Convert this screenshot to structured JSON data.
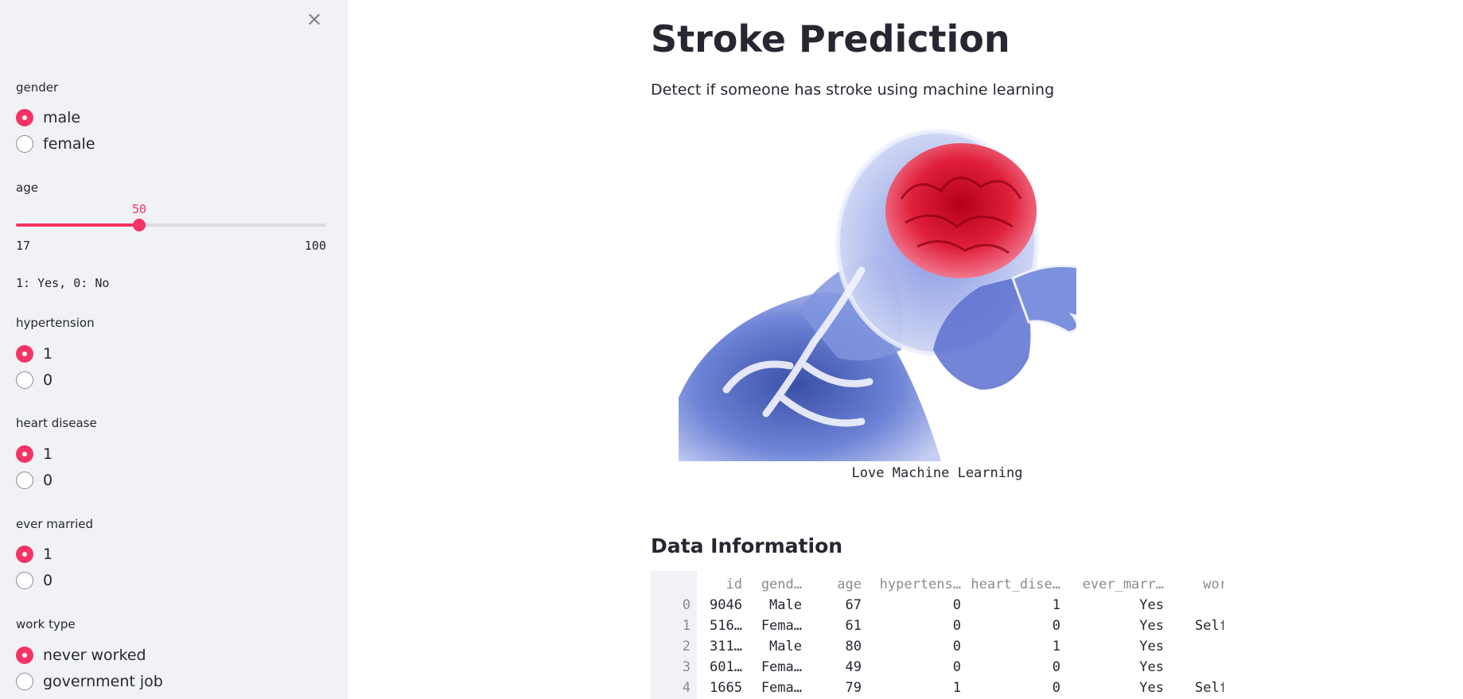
{
  "sidebar": {
    "close_icon": "close-icon",
    "gender": {
      "label": "gender",
      "options": [
        {
          "label": "male",
          "selected": true
        },
        {
          "label": "female",
          "selected": false
        }
      ]
    },
    "age": {
      "label": "age",
      "value": "50",
      "min": "17",
      "max": "100",
      "fraction": 0.3976
    },
    "legend_text": "1: Yes, 0: No",
    "hypertension": {
      "label": "hypertension",
      "options": [
        {
          "label": "1",
          "selected": true
        },
        {
          "label": "0",
          "selected": false
        }
      ]
    },
    "heart_disease": {
      "label": "heart disease",
      "options": [
        {
          "label": "1",
          "selected": true
        },
        {
          "label": "0",
          "selected": false
        }
      ]
    },
    "ever_married": {
      "label": "ever married",
      "options": [
        {
          "label": "1",
          "selected": true
        },
        {
          "label": "0",
          "selected": false
        }
      ]
    },
    "work_type": {
      "label": "work type",
      "options": [
        {
          "label": "never worked",
          "selected": true
        },
        {
          "label": "government job",
          "selected": false
        }
      ]
    }
  },
  "main": {
    "title": "Stroke Prediction",
    "subtitle": "Detect if someone has stroke using machine learning",
    "image_caption": "Love Machine Learning",
    "section_title": "Data Information",
    "table": {
      "columns": [
        "id",
        "gend…",
        "age",
        "hypertens…",
        "heart_dise…",
        "ever_marr…",
        "wor"
      ],
      "rows": [
        {
          "index": "0",
          "cells": [
            "9046",
            "Male",
            "67",
            "0",
            "1",
            "Yes",
            ""
          ]
        },
        {
          "index": "1",
          "cells": [
            "516…",
            "Fema…",
            "61",
            "0",
            "0",
            "Yes",
            "Self"
          ]
        },
        {
          "index": "2",
          "cells": [
            "311…",
            "Male",
            "80",
            "0",
            "1",
            "Yes",
            ""
          ]
        },
        {
          "index": "3",
          "cells": [
            "601…",
            "Fema…",
            "49",
            "0",
            "0",
            "Yes",
            ""
          ]
        },
        {
          "index": "4",
          "cells": [
            "1665",
            "Fema…",
            "79",
            "1",
            "0",
            "Yes",
            "Self"
          ]
        }
      ]
    }
  },
  "colors": {
    "accent": "#f63366",
    "sidebar_bg": "#f0f2f6",
    "text": "#262730"
  }
}
